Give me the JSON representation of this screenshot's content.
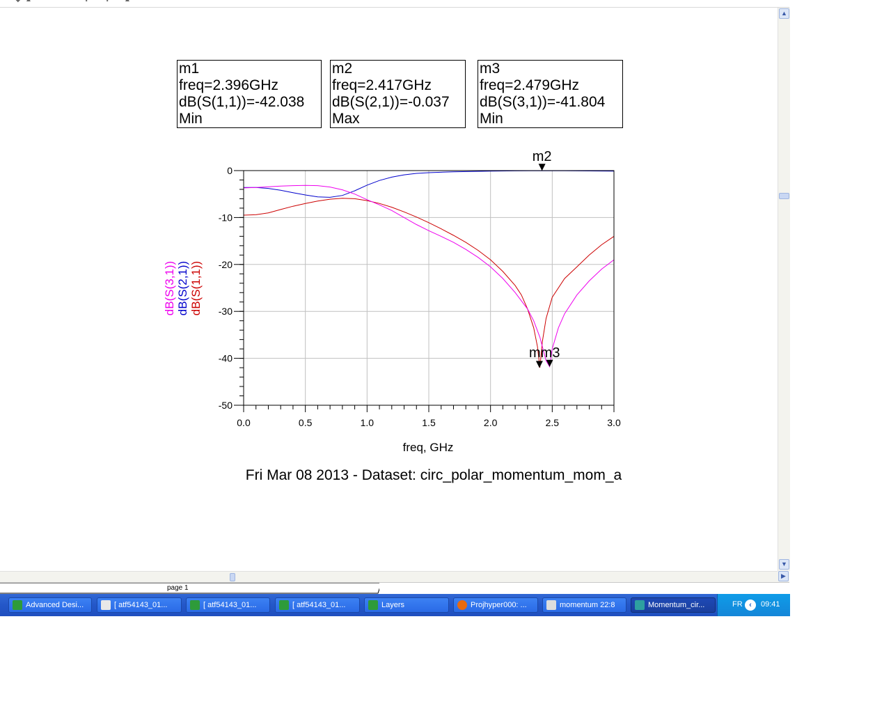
{
  "markers": [
    {
      "name": "m1",
      "freq": "freq=2.396GHz",
      "value": "dB(S(1,1))=-42.038",
      "kind": "Min"
    },
    {
      "name": "m2",
      "freq": "freq=2.417GHz",
      "value": "dB(S(2,1))=-0.037",
      "kind": "Max"
    },
    {
      "name": "m3",
      "freq": "freq=2.479GHz",
      "value": "dB(S(3,1))=-41.804",
      "kind": "Min"
    }
  ],
  "chart_data": {
    "type": "line",
    "xlabel": "freq, GHz",
    "ylabel_parts": [
      "dB(S(3,1))",
      "dB(S(2,1))",
      "dB(S(1,1))"
    ],
    "xlim": [
      0.0,
      3.0
    ],
    "ylim": [
      -50,
      0
    ],
    "x_ticks": [
      "0.0",
      "0.5",
      "1.0",
      "1.5",
      "2.0",
      "2.5",
      "3.0"
    ],
    "y_ticks": [
      "0",
      "-10",
      "-20",
      "-30",
      "-40",
      "-50"
    ],
    "grid": true,
    "series": [
      {
        "name": "dB(S(1,1))",
        "color": "#cc0000",
        "x": [
          0.0,
          0.1,
          0.2,
          0.3,
          0.4,
          0.5,
          0.6,
          0.7,
          0.8,
          0.9,
          1.0,
          1.1,
          1.2,
          1.3,
          1.4,
          1.5,
          1.6,
          1.7,
          1.8,
          1.9,
          2.0,
          2.1,
          2.2,
          2.25,
          2.3,
          2.35,
          2.38,
          2.4,
          2.42,
          2.45,
          2.5,
          2.6,
          2.7,
          2.8,
          2.9,
          3.0
        ],
        "y": [
          -9.5,
          -9.4,
          -9.0,
          -8.3,
          -7.6,
          -7.0,
          -6.5,
          -6.1,
          -5.9,
          -6.0,
          -6.4,
          -7.0,
          -7.8,
          -8.8,
          -9.9,
          -11.1,
          -12.4,
          -13.8,
          -15.3,
          -17.0,
          -19.0,
          -21.5,
          -24.5,
          -26.5,
          -29.5,
          -33.5,
          -37.5,
          -42.0,
          -36.5,
          -31.5,
          -27.0,
          -23.0,
          -20.5,
          -18.0,
          -15.8,
          -14.0
        ]
      },
      {
        "name": "dB(S(2,1))",
        "color": "#0000cc",
        "x": [
          0.0,
          0.1,
          0.2,
          0.3,
          0.4,
          0.5,
          0.6,
          0.7,
          0.8,
          0.9,
          1.0,
          1.1,
          1.2,
          1.3,
          1.4,
          1.5,
          1.7,
          2.0,
          2.2,
          2.417,
          2.6,
          3.0
        ],
        "y": [
          -3.6,
          -3.6,
          -3.8,
          -4.2,
          -4.7,
          -5.2,
          -5.6,
          -5.7,
          -5.3,
          -4.3,
          -3.1,
          -2.1,
          -1.4,
          -0.9,
          -0.6,
          -0.45,
          -0.25,
          -0.12,
          -0.06,
          -0.037,
          -0.05,
          -0.1
        ]
      },
      {
        "name": "dB(S(3,1))",
        "color": "#ee00ee",
        "x": [
          0.0,
          0.1,
          0.2,
          0.3,
          0.4,
          0.5,
          0.6,
          0.7,
          0.8,
          0.9,
          1.0,
          1.1,
          1.2,
          1.3,
          1.4,
          1.5,
          1.6,
          1.7,
          1.8,
          1.9,
          2.0,
          2.1,
          2.2,
          2.3,
          2.35,
          2.4,
          2.43,
          2.45,
          2.479,
          2.5,
          2.55,
          2.6,
          2.7,
          2.8,
          2.9,
          3.0
        ],
        "y": [
          -3.7,
          -3.6,
          -3.45,
          -3.3,
          -3.2,
          -3.15,
          -3.2,
          -3.5,
          -4.1,
          -5.0,
          -6.2,
          -7.3,
          -8.5,
          -10.0,
          -11.5,
          -12.8,
          -14.0,
          -15.3,
          -16.8,
          -18.5,
          -20.5,
          -23.0,
          -26.0,
          -29.5,
          -32.0,
          -35.5,
          -38.5,
          -40.5,
          -41.8,
          -38.0,
          -33.5,
          -30.5,
          -26.5,
          -23.5,
          -21.0,
          -19.0
        ]
      }
    ],
    "marker_labels": [
      {
        "name": "m2",
        "x": 2.417,
        "y": -0.037
      },
      {
        "name": "m1",
        "x": 2.396,
        "y": -42.038
      },
      {
        "name": "m3",
        "x": 2.479,
        "y": -41.804
      }
    ],
    "marker_overlap_label": "mm3",
    "subtitle": "Fri Mar 08 2013 - Dataset: circ_polar_momentum_mom_a"
  },
  "tabs": {
    "page_label": "page 1"
  },
  "taskbar": {
    "items": [
      {
        "label": "Advanced Desi...",
        "icon_color": "#2e9b3a"
      },
      {
        "label": "[ atf54143_01...",
        "icon_color": "#e8e8e8"
      },
      {
        "label": "[ atf54143_01...",
        "icon_color": "#2e9b3a"
      },
      {
        "label": "[ atf54143_01...",
        "icon_color": "#2e9b3a"
      },
      {
        "label": "Layers",
        "icon_color": "#2e9b3a"
      },
      {
        "label": "Projhyper000: ...",
        "icon_color": "#e86a10"
      },
      {
        "label": "momentum 22:8",
        "icon_color": "#dddddd"
      },
      {
        "label": "Momentum_cir...",
        "icon_color": "#2ea0a0"
      }
    ],
    "language": "FR",
    "time": "09:41"
  }
}
